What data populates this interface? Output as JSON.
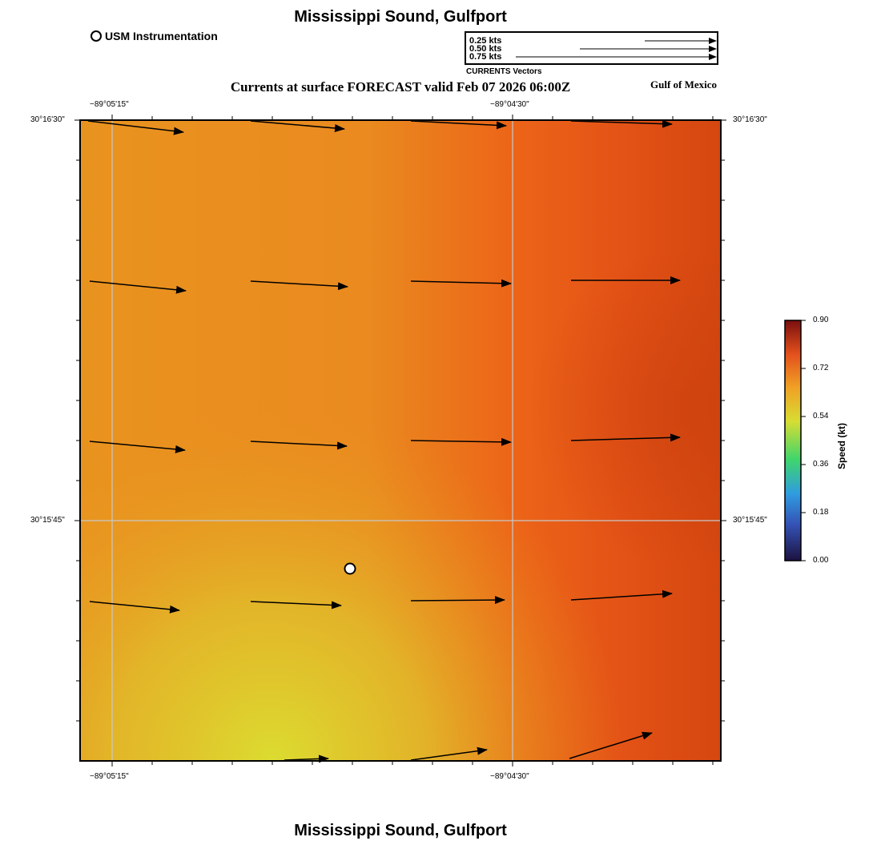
{
  "header": {
    "title": "Mississippi Sound, Gulfport",
    "subtitle": "Currents at surface FORECAST valid Feb 07 2026 06:00Z",
    "region_label": "Gulf of Mexico",
    "footer_title": "Mississippi Sound, Gulfport"
  },
  "legend": {
    "station_label": "USM Instrumentation",
    "vector_caption": "CURRENTS Vectors",
    "vector_scale": [
      {
        "label": "0.25 kts",
        "speed": 0.25
      },
      {
        "label": "0.50 kts",
        "speed": 0.5
      },
      {
        "label": "0.75 kts",
        "speed": 0.75
      }
    ]
  },
  "map": {
    "lon_ticks": [
      "−89°05'15\"",
      "−89°04'30\""
    ],
    "lat_ticks": [
      "30°16'30\"",
      "30°15'45\""
    ],
    "station_symbol": "open-circle-station-marker"
  },
  "colorbar": {
    "title": "Speed (kt)",
    "ticks": [
      "0.90",
      "0.72",
      "0.54",
      "0.36",
      "0.18",
      "0.00"
    ],
    "range": [
      0.0,
      0.9
    ],
    "colors": {
      "high": "#7a0f0f",
      "orange_red": "#e3501c",
      "orange": "#f08a24",
      "yellow": "#dcd832",
      "green": "#3fd56c",
      "blue": "#3a7bd5",
      "low": "#1c1240"
    }
  },
  "field_colors": {
    "dominant": "#e8901e",
    "east_high": "#d4460f",
    "southwest_low": "#dcd830"
  }
}
